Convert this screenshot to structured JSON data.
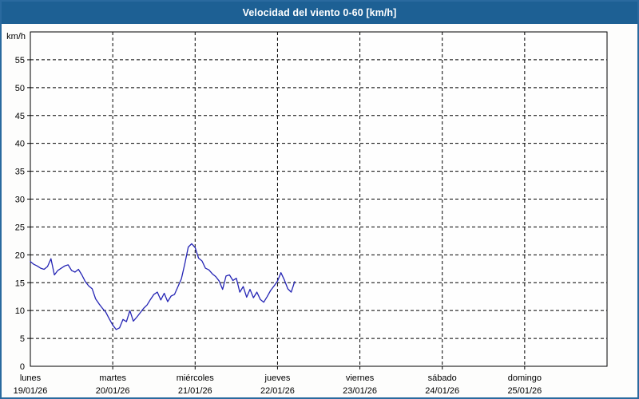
{
  "window": {
    "title": "Velocidad del viento 0-60 [km/h]"
  },
  "colors": {
    "titlebar_bg": "#1d6094",
    "titlebar_text": "#ffffff",
    "window_border": "#2a6a9f",
    "plot_background": "#fefefe",
    "grid_color": "#000000",
    "line_color": "#2424b4"
  },
  "chart_data": {
    "type": "line",
    "title": "Velocidad del viento 0-60 [km/h]",
    "unit_label": "km/h",
    "ylim": [
      0,
      60
    ],
    "yticks": [
      0,
      5,
      10,
      15,
      20,
      25,
      30,
      35,
      40,
      45,
      50,
      55
    ],
    "grid": "dashed",
    "legend": "none",
    "x_days": [
      {
        "name": "lunes",
        "date": "19/01/26"
      },
      {
        "name": "martes",
        "date": "20/01/26"
      },
      {
        "name": "miércoles",
        "date": "21/01/26"
      },
      {
        "name": "jueves",
        "date": "22/01/26"
      },
      {
        "name": "viernes",
        "date": "23/01/26"
      },
      {
        "name": "sábado",
        "date": "24/01/26"
      },
      {
        "name": "domingo",
        "date": "25/01/26"
      }
    ],
    "series": [
      {
        "name": "Velocidad del viento",
        "start_day_index": 0,
        "interval_hours": 1,
        "values": [
          18.8,
          18.3,
          18.0,
          17.6,
          17.4,
          17.9,
          19.3,
          16.4,
          17.2,
          17.6,
          18.0,
          18.2,
          17.2,
          16.9,
          17.4,
          16.4,
          15.2,
          14.4,
          13.9,
          12.1,
          11.2,
          10.4,
          9.7,
          8.5,
          7.4,
          6.6,
          6.9,
          8.4,
          8.0,
          10.0,
          8.1,
          8.8,
          9.6,
          10.4,
          11.0,
          12.0,
          12.9,
          13.3,
          11.9,
          13.1,
          11.6,
          12.6,
          12.9,
          14.3,
          15.7,
          18.4,
          21.4,
          22.0,
          21.3,
          19.4,
          18.9,
          17.6,
          17.3,
          16.6,
          16.1,
          15.3,
          13.8,
          16.2,
          16.4,
          15.4,
          15.8,
          13.3,
          14.3,
          12.4,
          13.8,
          12.3,
          13.3,
          12.0,
          11.5,
          12.5,
          13.6,
          14.4,
          15.3,
          16.8,
          15.5,
          13.9,
          13.3,
          15.2
        ]
      }
    ]
  }
}
